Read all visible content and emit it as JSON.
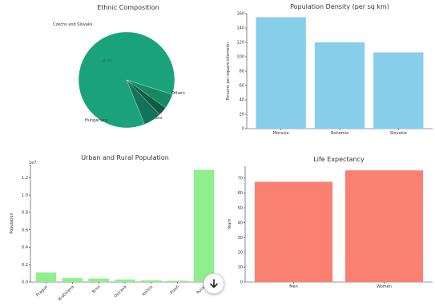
{
  "chart_data": [
    {
      "type": "pie",
      "title": "Ethnic Composition",
      "slices": [
        {
          "label": "Czechs and Slovaks",
          "value": 86,
          "pct_label": "86.0%",
          "color": "#1aa37a"
        },
        {
          "label": "Others",
          "value": 5,
          "pct_label": "5.0%",
          "color": "#168a66"
        },
        {
          "label": "Germans",
          "value": 3,
          "pct_label": "3.0%",
          "color": "#0f5c44"
        },
        {
          "label": "Hungarians",
          "value": 6,
          "pct_label": "6.0%",
          "color": "#13735a"
        }
      ]
    },
    {
      "type": "bar",
      "title": "Population Density (per sq km)",
      "categories": [
        "Moravia",
        "Bohemia",
        "Slovakia"
      ],
      "values": [
        155,
        120,
        106
      ],
      "ylabel": "Persons per square kilometer",
      "ylim": [
        0,
        160
      ],
      "yticks": [
        0,
        20,
        40,
        60,
        80,
        100,
        120,
        140,
        160
      ],
      "color": "#87ceeb"
    },
    {
      "type": "bar",
      "title": "Urban and Rural Population",
      "categories": [
        "Prague",
        "Bratislava",
        "Brno",
        "Ostrava",
        "Košice",
        "Plzeň",
        "Rural"
      ],
      "values": [
        1100000,
        450000,
        400000,
        300000,
        200000,
        150000,
        12900000
      ],
      "ylabel": "Population",
      "offset_label": "1e7",
      "ylim": [
        0,
        13500000
      ],
      "yticks": [
        0,
        2000000,
        4000000,
        6000000,
        8000000,
        10000000,
        12000000
      ],
      "ytick_labels": [
        "0.0",
        "0.2",
        "0.4",
        "0.6",
        "0.8",
        "1.0",
        "1.2"
      ],
      "color": "#90ee90"
    },
    {
      "type": "bar",
      "title": "Life Expectancy",
      "categories": [
        "Men",
        "Women"
      ],
      "values": [
        67.5,
        75.2
      ],
      "ylabel": "Years",
      "ylim": [
        0,
        78
      ],
      "yticks": [
        0,
        10,
        20,
        30,
        40,
        50,
        60,
        70
      ],
      "color": "#fa8072"
    }
  ]
}
